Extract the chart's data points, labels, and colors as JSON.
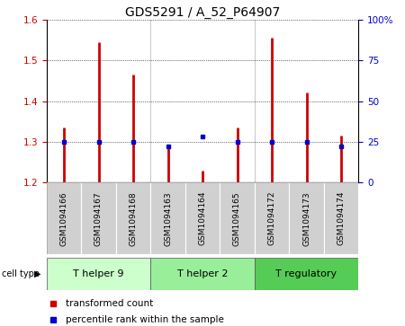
{
  "title": "GDS5291 / A_52_P64907",
  "samples": [
    "GSM1094166",
    "GSM1094167",
    "GSM1094168",
    "GSM1094163",
    "GSM1094164",
    "GSM1094165",
    "GSM1094172",
    "GSM1094173",
    "GSM1094174"
  ],
  "transformed_counts": [
    1.335,
    1.545,
    1.465,
    1.29,
    1.23,
    1.335,
    1.555,
    1.42,
    1.315
  ],
  "percentile_ranks": [
    25,
    25,
    25,
    22,
    28,
    25,
    25,
    25,
    22
  ],
  "cell_types": [
    {
      "label": "T helper 9",
      "start": 0,
      "end": 3
    },
    {
      "label": "T helper 2",
      "start": 3,
      "end": 6
    },
    {
      "label": "T regulatory",
      "start": 6,
      "end": 9
    }
  ],
  "ct_colors": [
    "#ccffcc",
    "#99ee99",
    "#55cc55"
  ],
  "ylim": [
    1.2,
    1.6
  ],
  "yticks": [
    1.2,
    1.3,
    1.4,
    1.5,
    1.6
  ],
  "right_yticks": [
    0,
    25,
    50,
    75,
    100
  ],
  "right_ytick_labels": [
    "0",
    "25",
    "50",
    "75",
    "100%"
  ],
  "bar_color": "#cc0000",
  "dot_color": "#0000cc",
  "background_color": "#ffffff",
  "title_fontsize": 10,
  "tick_label_fontsize": 7.5,
  "legend_fontsize": 7.5,
  "sample_fontsize": 6.5
}
